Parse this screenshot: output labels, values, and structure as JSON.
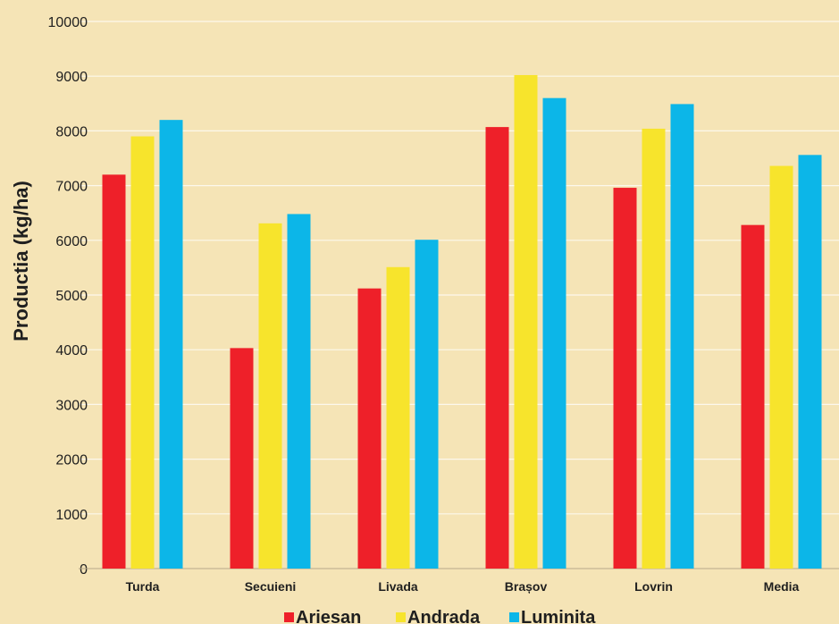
{
  "chart_data": {
    "type": "bar",
    "title": "",
    "xlabel": "",
    "ylabel": "Productia (kg/ha)",
    "ylim": [
      0,
      10000
    ],
    "yticks": [
      0,
      1000,
      2000,
      3000,
      4000,
      5000,
      6000,
      7000,
      8000,
      9000,
      10000
    ],
    "grid": true,
    "legend_position": "bottom",
    "categories": [
      "Turda",
      "Secuieni",
      "Livada",
      "Brașov",
      "Lovrin",
      "Media"
    ],
    "series": [
      {
        "name": "Ariesan",
        "color": "#ee2029",
        "values": [
          7200,
          4030,
          5120,
          8070,
          6960,
          6280
        ]
      },
      {
        "name": "Andrada",
        "color": "#f7e42c",
        "values": [
          7900,
          6310,
          5510,
          9020,
          8040,
          7360
        ]
      },
      {
        "name": "Luminita",
        "color": "#0cb6e8",
        "values": [
          8200,
          6480,
          6010,
          8600,
          8490,
          7560
        ]
      }
    ]
  }
}
